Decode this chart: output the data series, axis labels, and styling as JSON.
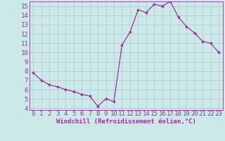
{
  "x": [
    0,
    1,
    2,
    3,
    4,
    5,
    6,
    7,
    8,
    9,
    10,
    11,
    12,
    13,
    14,
    15,
    16,
    17,
    18,
    19,
    20,
    21,
    22,
    23
  ],
  "y": [
    7.8,
    7.0,
    6.5,
    6.3,
    6.0,
    5.8,
    5.5,
    5.3,
    4.2,
    5.0,
    4.7,
    10.8,
    12.2,
    14.6,
    14.3,
    15.2,
    15.0,
    15.5,
    13.8,
    12.8,
    12.1,
    11.2,
    11.0,
    10.0
  ],
  "line_color": "#993399",
  "marker_color": "#993399",
  "bg_color": "#cce8e8",
  "grid_color": "#aacccc",
  "xlabel": "Windchill (Refroidissement éolien,°C)",
  "ylim": [
    3.8,
    15.5
  ],
  "xlim": [
    -0.5,
    23.5
  ],
  "yticks": [
    4,
    5,
    6,
    7,
    8,
    9,
    10,
    11,
    12,
    13,
    14,
    15
  ],
  "xticks": [
    0,
    1,
    2,
    3,
    4,
    5,
    6,
    7,
    8,
    9,
    10,
    11,
    12,
    13,
    14,
    15,
    16,
    17,
    18,
    19,
    20,
    21,
    22,
    23
  ],
  "axis_color": "#993399",
  "tick_fontsize": 6.5,
  "xlabel_fontsize": 6.5,
  "marker_size": 2.0,
  "line_width": 0.9
}
